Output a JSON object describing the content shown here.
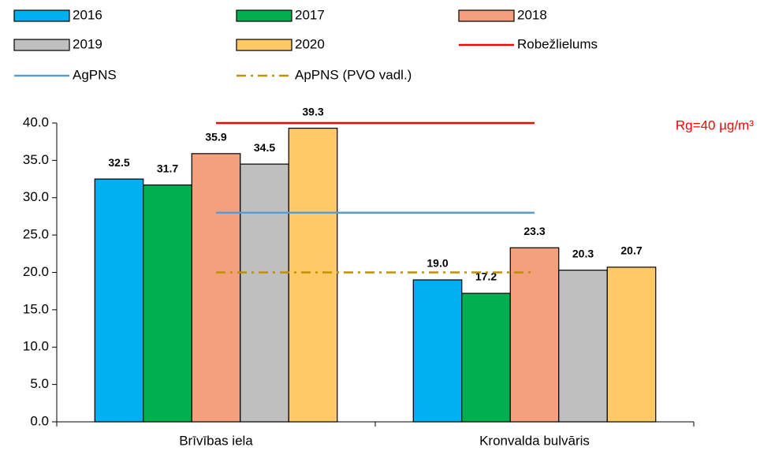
{
  "chart_data": {
    "type": "bar",
    "categories": [
      "Brīvības iela",
      "Kronvalda bulvāris"
    ],
    "series": [
      {
        "name": "2016",
        "color": "#00b0f0",
        "values": [
          32.5,
          19
        ],
        "value_labels": [
          "32.5",
          "19.0"
        ]
      },
      {
        "name": "2017",
        "color": "#00b050",
        "values": [
          31.7,
          17.2
        ],
        "value_labels": [
          "31.7",
          "17.2"
        ]
      },
      {
        "name": "2018",
        "color": "#f4a07c",
        "values": [
          35.9,
          23.3
        ],
        "value_labels": [
          "35.9",
          "23.3"
        ]
      },
      {
        "name": "2019",
        "color": "#bfbfbf",
        "values": [
          34.5,
          20.3
        ],
        "value_labels": [
          "34.5",
          "20.3"
        ]
      },
      {
        "name": "2020",
        "color": "#ffc966",
        "values": [
          39.3,
          20.7
        ],
        "value_labels": [
          "39.3",
          "20.7"
        ]
      }
    ],
    "reference_lines": [
      {
        "name": "Robežlielums",
        "color": "#ff0000",
        "value": 40,
        "style": "solid"
      },
      {
        "name": "AgPNS",
        "color": "#5b9bd5",
        "value": 28,
        "style": "solid"
      },
      {
        "name": "ApPNS (PVO vadl.)",
        "color": "#bf9000",
        "value": 20,
        "style": "dashdot"
      }
    ],
    "annotation": "Rg=40 µg/m³",
    "ylim": [
      0,
      40
    ],
    "yticks": [
      {
        "value": 0,
        "label": "0.0"
      },
      {
        "value": 5,
        "label": "5.0"
      },
      {
        "value": 10,
        "label": "10.0"
      },
      {
        "value": 15,
        "label": "15.0"
      },
      {
        "value": 20,
        "label": "20.0"
      },
      {
        "value": 25,
        "label": "25.0"
      },
      {
        "value": 30,
        "label": "30.0"
      },
      {
        "value": 35,
        "label": "35.0"
      },
      {
        "value": 40,
        "label": "40.0"
      }
    ],
    "grid": false
  }
}
